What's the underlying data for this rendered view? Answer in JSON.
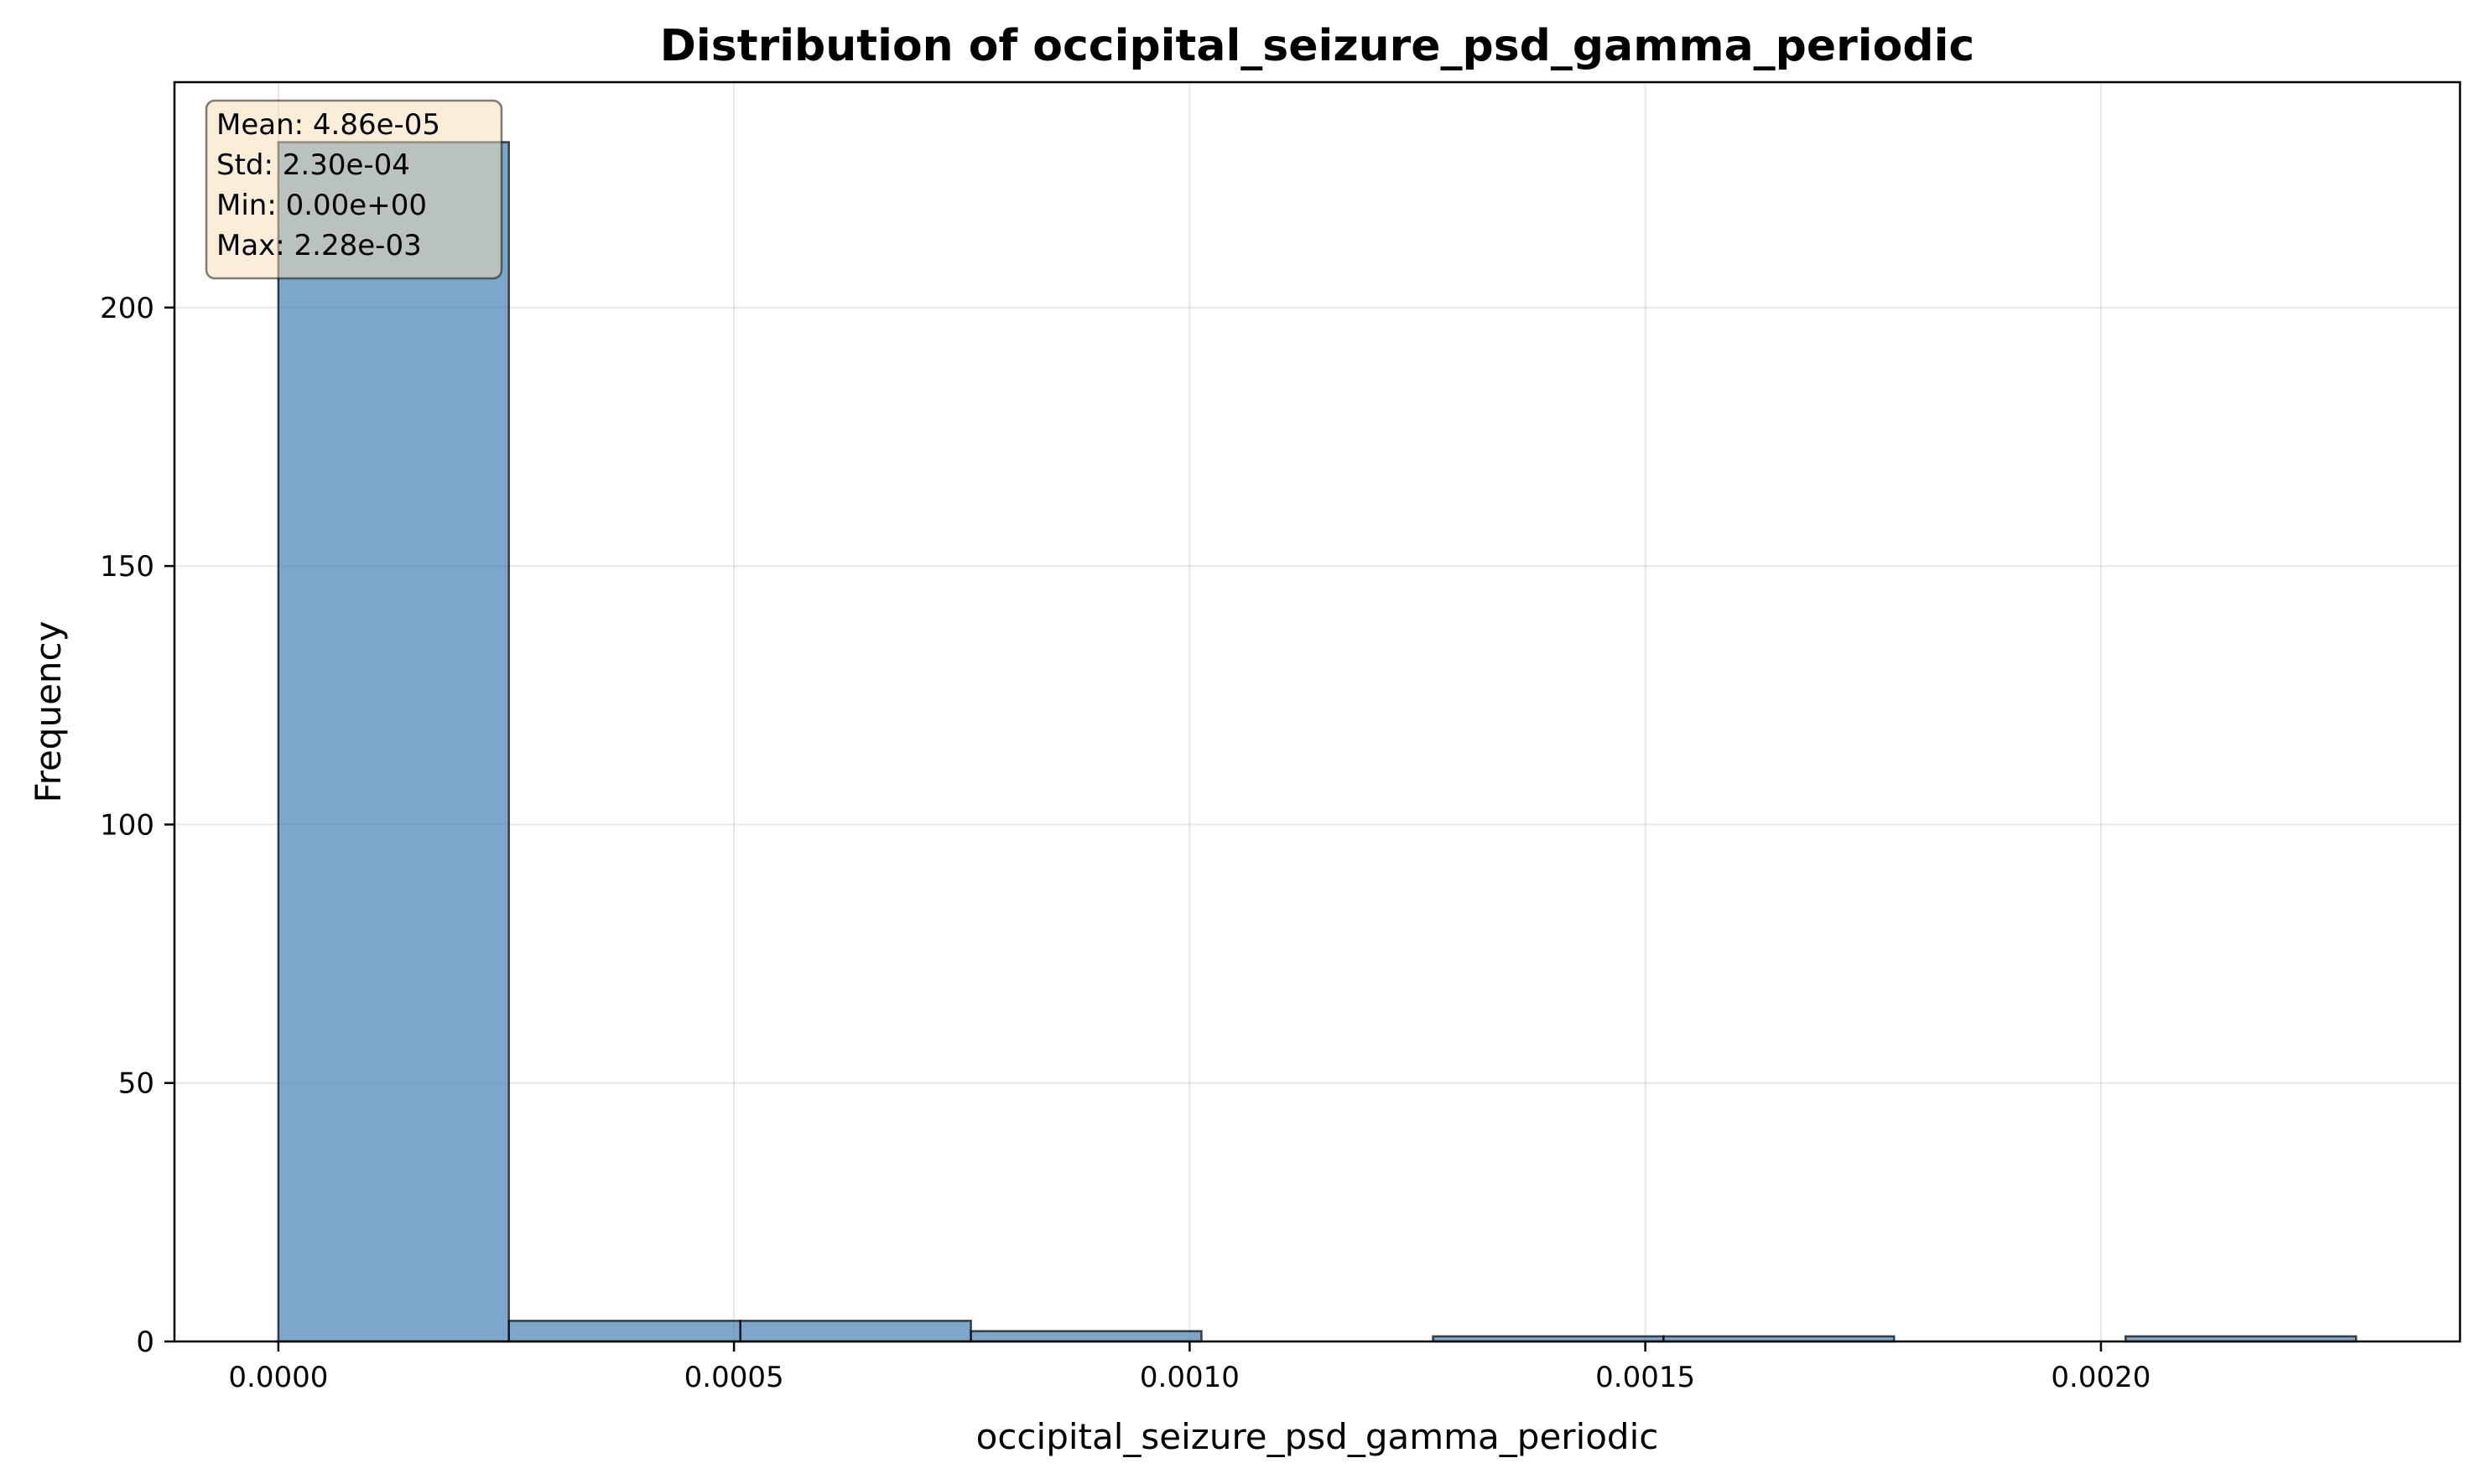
{
  "chart_data": {
    "type": "bar",
    "title": "Distribution of occipital_seizure_psd_gamma_periodic",
    "xlabel": "occipital_seizure_psd_gamma_periodic",
    "ylabel": "Frequency",
    "bin_edges": [
      0.0,
      0.000253,
      0.000507,
      0.00076,
      0.001013,
      0.001267,
      0.00152,
      0.001773,
      0.002027,
      0.00228
    ],
    "values": [
      232,
      4,
      4,
      2,
      0,
      1,
      1,
      0,
      1
    ],
    "xlim": [
      -0.000114,
      0.002394
    ],
    "ylim": [
      0,
      243.6
    ],
    "x_ticks": [
      0.0,
      0.0005,
      0.001,
      0.0015,
      0.002
    ],
    "x_tick_labels": [
      "0.0000",
      "0.0005",
      "0.0010",
      "0.0015",
      "0.0020"
    ],
    "y_ticks": [
      0,
      50,
      100,
      150,
      200
    ],
    "y_tick_labels": [
      "0",
      "50",
      "100",
      "150",
      "200"
    ],
    "grid": true,
    "bar_color": "#4682b4",
    "stats_box": {
      "lines": [
        "Mean: 4.86e-05",
        "Std: 2.30e-04",
        "Min: 0.00e+00",
        "Max: 2.28e-03"
      ],
      "background": "#f5deb3",
      "placement": "top-left"
    }
  }
}
